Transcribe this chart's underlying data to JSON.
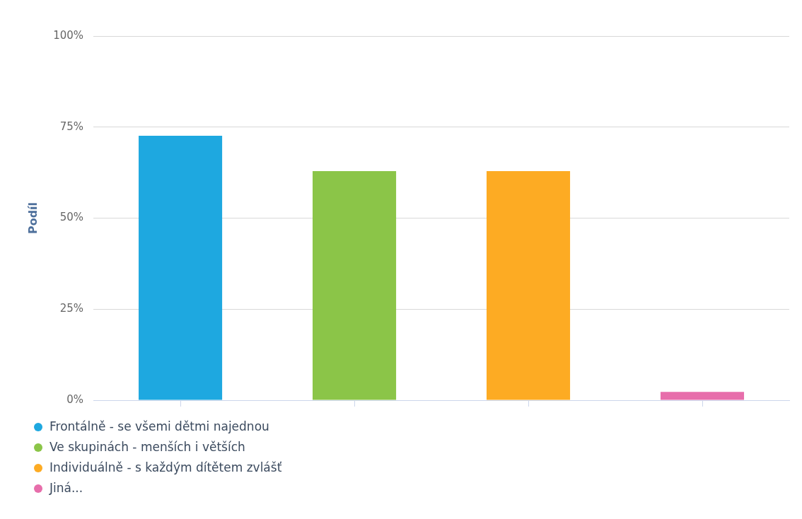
{
  "chart_data": {
    "type": "bar",
    "ylabel": "Podíl",
    "categories": [
      null,
      null,
      null,
      null
    ],
    "series": [
      {
        "name": "Frontálně - se všemi dětmi najednou",
        "color": "#1ea8e0",
        "values": [
          72.6,
          null,
          null,
          null
        ]
      },
      {
        "name": "Ve skupinách - menších i větších",
        "color": "#8bc548",
        "values": [
          null,
          62.9,
          null,
          null
        ]
      },
      {
        "name": "Individuálně - s každým dítětem zvlášť",
        "color": "#fdab23",
        "values": [
          null,
          null,
          62.9,
          null
        ]
      },
      {
        "name": "Jiná...",
        "color": "#e76eab",
        "values": [
          null,
          null,
          null,
          2.3
        ]
      }
    ],
    "ylim": [
      0,
      100
    ],
    "yticks": [
      {
        "value": 0,
        "label": "0%"
      },
      {
        "value": 25,
        "label": "25%"
      },
      {
        "value": 50,
        "label": "50%"
      },
      {
        "value": 75,
        "label": "75%"
      },
      {
        "value": 100,
        "label": "100%"
      }
    ],
    "grid": "y",
    "legend": "bottom left",
    "tick_labels": "y"
  }
}
